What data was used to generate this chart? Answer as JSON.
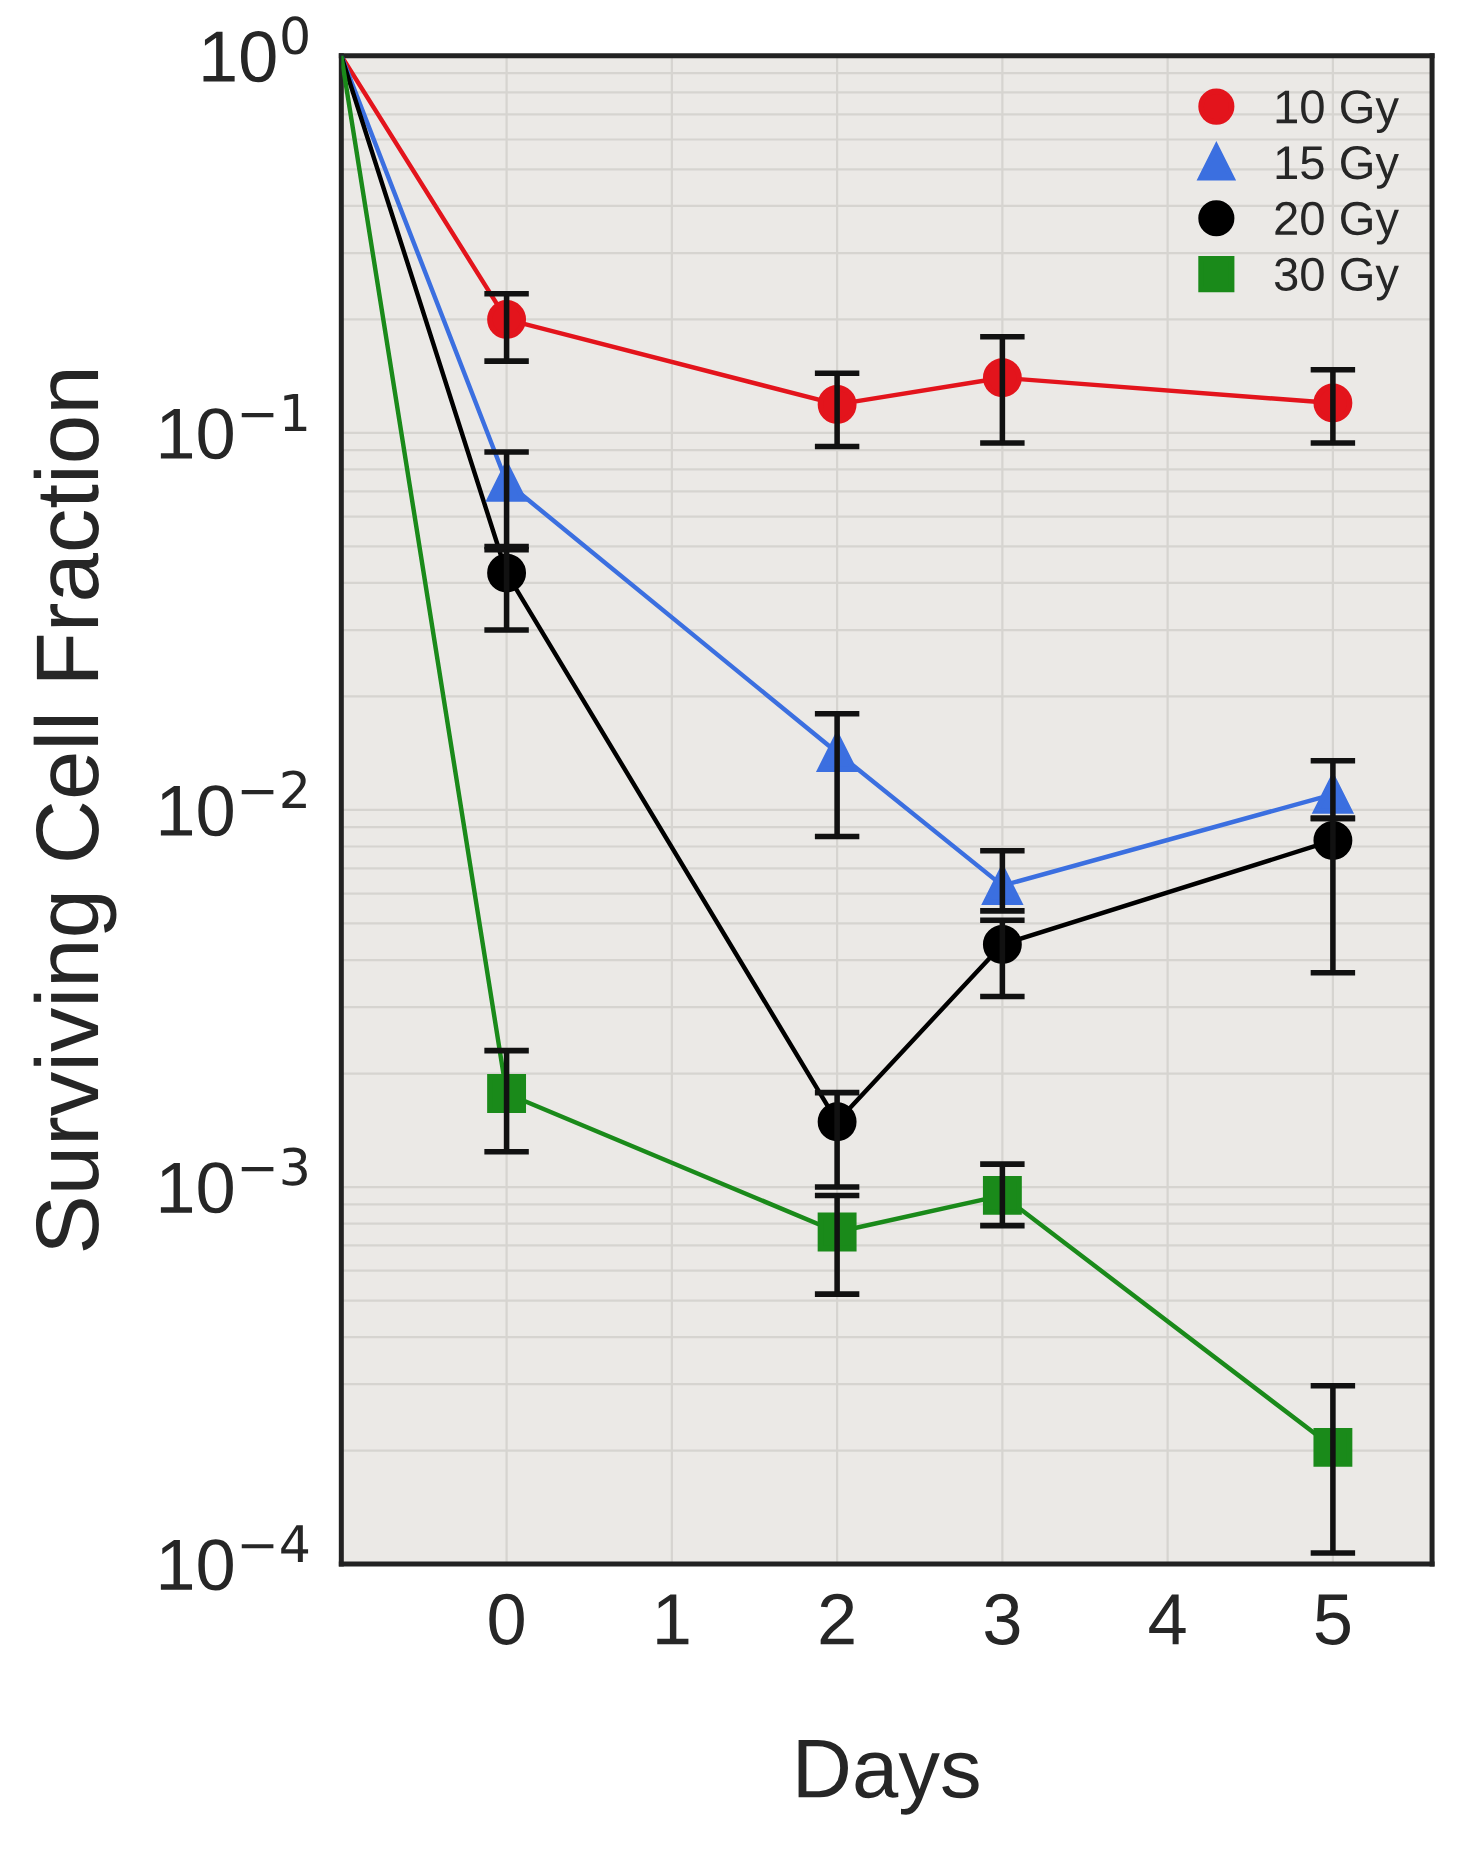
{
  "chart_data": {
    "type": "line",
    "xlabel": "Days",
    "ylabel": "Surviving Cell Fraction",
    "log": "y",
    "grid": true,
    "legend": "top right",
    "line_style": "solid",
    "xlim": [
      -1,
      5.6
    ],
    "xticks": [
      0,
      1,
      2,
      3,
      4,
      5
    ],
    "ylim": [
      0.0001,
      1
    ],
    "yticks": [
      {
        "value": 0.0001,
        "label": "10$^{−4}$"
      },
      {
        "value": 0.001,
        "label": "10$^{−3}$"
      },
      {
        "value": 0.01,
        "label": "10$^{−2}$"
      },
      {
        "value": 0.1,
        "label": "10$^{−1}$"
      },
      {
        "value": 1,
        "label": "10$^{0}$"
      }
    ],
    "x": [
      -1,
      0,
      2,
      3,
      5
    ],
    "series": [
      {
        "name": "10 Gy",
        "color": "#e3141c",
        "marker": "circle",
        "values": [
          1,
          0.2,
          0.119,
          0.14,
          0.12
        ],
        "errors": [
          null,
          [
            0.155,
            0.234
          ],
          [
            0.092,
            0.144
          ],
          [
            0.094,
            0.18
          ],
          [
            0.094,
            0.147
          ]
        ]
      },
      {
        "name": "15 Gy",
        "color": "#3b6fe0",
        "marker": "triangle",
        "values": [
          1,
          0.074,
          0.0142,
          0.0063,
          0.011
        ],
        "errors": [
          null,
          [
            0.049,
            0.089
          ],
          [
            0.0085,
            0.018
          ],
          [
            0.0054,
            0.0078
          ],
          [
            0.0095,
            0.0135
          ]
        ]
      },
      {
        "name": "20 Gy",
        "color": "#000000",
        "marker": "circle",
        "values": [
          1,
          0.0425,
          0.00149,
          0.0044,
          0.0083
        ],
        "errors": [
          null,
          [
            0.03,
            0.05
          ],
          [
            0.001,
            0.00178
          ],
          [
            0.0032,
            0.0051
          ],
          [
            0.0037,
            0.0095
          ]
        ]
      },
      {
        "name": "30 Gy",
        "color": "#1a8a1a",
        "marker": "square",
        "values": [
          1,
          0.00177,
          0.00076,
          0.00095,
          0.000204
        ],
        "errors": [
          null,
          [
            0.00124,
            0.0023
          ],
          [
            0.00052,
            0.00095
          ],
          [
            0.00079,
            0.00115
          ],
          [
            0.000107,
            0.000297
          ]
        ]
      }
    ]
  }
}
